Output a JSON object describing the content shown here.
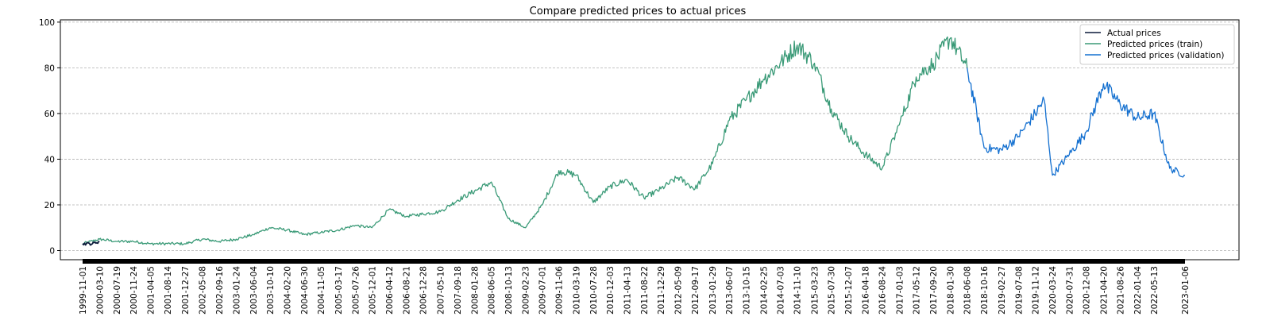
{
  "chart_data": {
    "type": "line",
    "title": "Compare predicted prices to actual prices",
    "xlabel": "",
    "ylabel": "",
    "ylim": [
      -4,
      101
    ],
    "yticks": [
      0,
      20,
      40,
      60,
      80,
      100
    ],
    "grid": "horizontal-dashed",
    "legend_position": "top-right",
    "x_tick_labels": [
      "1999-11-01",
      "2000-03-10",
      "2000-07-19",
      "2000-11-24",
      "2001-04-05",
      "2001-08-14",
      "2001-12-27",
      "2002-05-08",
      "2002-09-16",
      "2003-01-24",
      "2003-06-04",
      "2003-10-10",
      "2004-02-20",
      "2004-06-30",
      "2004-11-05",
      "2005-03-17",
      "2005-07-26",
      "2005-12-01",
      "2006-04-12",
      "2006-08-21",
      "2006-12-28",
      "2007-05-10",
      "2007-09-18",
      "2008-01-28",
      "2008-06-05",
      "2008-10-13",
      "2009-02-23",
      "2009-07-01",
      "2009-11-06",
      "2010-03-19",
      "2010-07-28",
      "2010-12-03",
      "2011-04-13",
      "2011-08-22",
      "2011-12-29",
      "2012-05-09",
      "2012-09-17",
      "2013-01-29",
      "2013-06-07",
      "2013-10-15",
      "2014-02-25",
      "2014-07-03",
      "2014-11-10",
      "2015-03-23",
      "2015-07-30",
      "2015-12-07",
      "2016-04-18",
      "2016-08-24",
      "2017-01-03",
      "2017-05-12",
      "2017-09-20",
      "2018-01-30",
      "2018-06-08",
      "2018-10-16",
      "2019-02-27",
      "2019-07-08",
      "2019-11-12",
      "2020-03-24",
      "2020-07-31",
      "2020-12-08",
      "2021-04-20",
      "2021-08-26",
      "2022-01-04",
      "2022-05-13",
      "2023-01-06"
    ],
    "series": [
      {
        "name": "Actual prices",
        "color": "#0b1a3a",
        "x": [
          "1999-11-01",
          "2000-01-15",
          "2000-03-10"
        ],
        "values": [
          3,
          3,
          4
        ]
      },
      {
        "name": "Predicted prices (train)",
        "color": "#3a9a77",
        "x": [
          "1999-11-01",
          "2000-03-10",
          "2000-07-19",
          "2000-11-24",
          "2001-04-05",
          "2001-08-14",
          "2001-12-27",
          "2002-05-08",
          "2002-09-16",
          "2003-01-24",
          "2003-06-04",
          "2003-10-10",
          "2004-02-20",
          "2004-06-30",
          "2004-11-05",
          "2005-03-17",
          "2005-07-26",
          "2005-12-01",
          "2006-04-12",
          "2006-08-21",
          "2006-12-28",
          "2007-05-10",
          "2007-09-18",
          "2008-01-28",
          "2008-06-05",
          "2008-10-13",
          "2009-02-23",
          "2009-07-01",
          "2009-11-06",
          "2010-03-19",
          "2010-07-28",
          "2010-12-03",
          "2011-04-13",
          "2011-08-22",
          "2011-12-29",
          "2012-05-09",
          "2012-09-17",
          "2013-01-29",
          "2013-06-07",
          "2013-10-15",
          "2014-02-25",
          "2014-07-03",
          "2014-11-10",
          "2015-03-23",
          "2015-07-30",
          "2015-12-07",
          "2016-04-18",
          "2016-08-24",
          "2017-01-03",
          "2017-05-12",
          "2017-09-20",
          "2018-01-30",
          "2018-06-08"
        ],
        "values": [
          3,
          5,
          4,
          4,
          3,
          3,
          3,
          5,
          4,
          5,
          7,
          10,
          9,
          7,
          8,
          9,
          11,
          10,
          18,
          15,
          16,
          17,
          22,
          26,
          30,
          14,
          10,
          20,
          35,
          33,
          21,
          28,
          31,
          23,
          27,
          32,
          27,
          38,
          57,
          66,
          75,
          82,
          90,
          82,
          62,
          50,
          42,
          36,
          55,
          76,
          82,
          93,
          80
        ]
      },
      {
        "name": "Predicted prices (validation)",
        "color": "#1470d0",
        "x": [
          "2018-06-08",
          "2018-10-16",
          "2019-02-27",
          "2019-07-08",
          "2019-11-12",
          "2020-01-20",
          "2020-03-24",
          "2020-07-31",
          "2020-12-08",
          "2021-04-20",
          "2021-08-26",
          "2022-01-04",
          "2022-05-13",
          "2022-09-10",
          "2023-01-06"
        ],
        "values": [
          80,
          45,
          44,
          50,
          60,
          66,
          33,
          42,
          52,
          73,
          64,
          58,
          60,
          36,
          33
        ]
      }
    ]
  }
}
